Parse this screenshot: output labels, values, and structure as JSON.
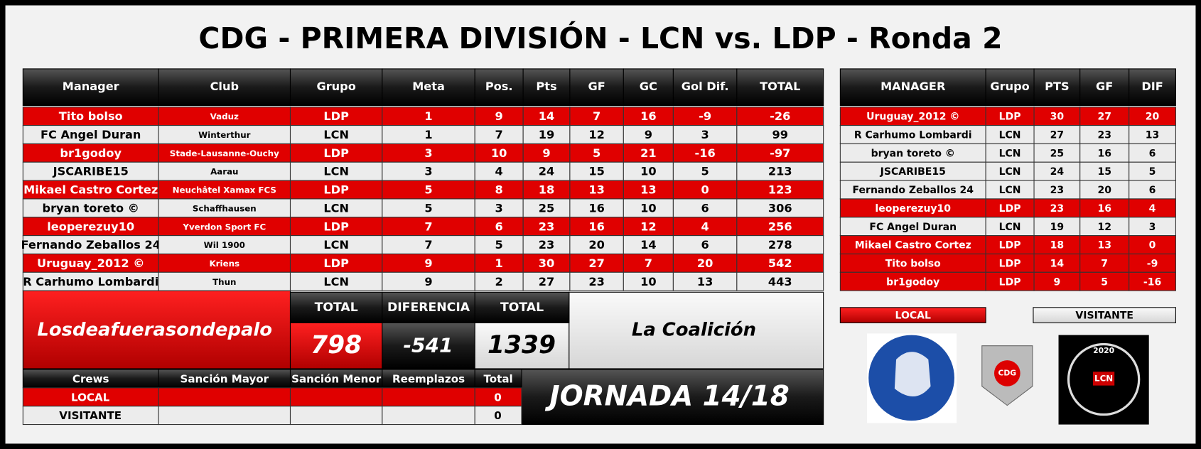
{
  "title": "CDG - PRIMERA DIVISIÓN - LCN vs. LDP - Ronda 2",
  "main_table": {
    "headers": [
      "Manager",
      "Club",
      "Grupo",
      "Meta",
      "Pos.",
      "Pts",
      "GF",
      "GC",
      "Gol Dif.",
      "TOTAL"
    ],
    "rows": [
      {
        "color": "#e00000",
        "text_color": "#ffffff",
        "cells": [
          "Tito bolso",
          "Vaduz",
          "LDP",
          1,
          9,
          14,
          7,
          16,
          -9,
          -26
        ]
      },
      {
        "color": "#ececec",
        "text_color": "#000000",
        "cells": [
          "FC Angel Duran",
          "Winterthur",
          "LCN",
          1,
          7,
          19,
          12,
          9,
          3,
          99
        ]
      },
      {
        "color": "#e00000",
        "text_color": "#ffffff",
        "cells": [
          "br1godoy",
          "Stade-Lausanne-Ouchy",
          "LDP",
          3,
          10,
          9,
          5,
          21,
          -16,
          -97
        ]
      },
      {
        "color": "#ececec",
        "text_color": "#000000",
        "cells": [
          "JSCARIBE15",
          "Aarau",
          "LCN",
          3,
          4,
          24,
          15,
          10,
          5,
          213
        ]
      },
      {
        "color": "#e00000",
        "text_color": "#ffffff",
        "cells": [
          "Mikael Castro Cortez",
          "Neuchâtel Xamax FCS",
          "LDP",
          5,
          8,
          18,
          13,
          13,
          0,
          123
        ]
      },
      {
        "color": "#ececec",
        "text_color": "#000000",
        "cells": [
          "bryan toreto ©",
          "Schaffhausen",
          "LCN",
          5,
          3,
          25,
          16,
          10,
          6,
          306
        ]
      },
      {
        "color": "#e00000",
        "text_color": "#ffffff",
        "cells": [
          "leoperezuy10",
          "Yverdon Sport FC",
          "LDP",
          7,
          6,
          23,
          16,
          12,
          4,
          256
        ]
      },
      {
        "color": "#ececec",
        "text_color": "#000000",
        "cells": [
          "Fernando Zeballos 24",
          "Wil 1900",
          "LCN",
          7,
          5,
          23,
          20,
          14,
          6,
          278
        ]
      },
      {
        "color": "#e00000",
        "text_color": "#ffffff",
        "cells": [
          "Uruguay_2012 ©",
          "Kriens",
          "LDP",
          9,
          1,
          30,
          27,
          7,
          20,
          542
        ]
      },
      {
        "color": "#ececec",
        "text_color": "#000000",
        "cells": [
          "R Carhumo Lombardi",
          "Thun",
          "LCN",
          9,
          2,
          27,
          23,
          10,
          13,
          443
        ]
      }
    ]
  },
  "summary": {
    "local_name": "Losdeafuerasondepalo",
    "headers": [
      "TOTAL",
      "DIFERENCIA",
      "TOTAL"
    ],
    "values": [
      798,
      -541,
      1339
    ],
    "visitor_name": "La Coalición"
  },
  "crews": {
    "headers": [
      "Crews",
      "Sanción Mayor",
      "Sanción Menor",
      "Reemplazos",
      "Total"
    ],
    "rows": [
      {
        "label": "LOCAL",
        "total": 0,
        "color": "#e00000",
        "text_color": "#ffffff"
      },
      {
        "label": "VISITANTE",
        "total": 0,
        "color": "#ececec",
        "text_color": "#000000"
      }
    ]
  },
  "jornada": "JORNADA 14/18",
  "standings": {
    "headers": [
      "MANAGER",
      "Grupo",
      "PTS",
      "GF",
      "DIF"
    ],
    "rows": [
      {
        "color": "#e00000",
        "text_color": "#ffffff",
        "cells": [
          "Uruguay_2012 ©",
          "LDP",
          30,
          27,
          20
        ]
      },
      {
        "color": "#ececec",
        "text_color": "#000000",
        "cells": [
          "R Carhumo Lombardi",
          "LCN",
          27,
          23,
          13
        ]
      },
      {
        "color": "#ececec",
        "text_color": "#000000",
        "cells": [
          "bryan toreto ©",
          "LCN",
          25,
          16,
          6
        ]
      },
      {
        "color": "#ececec",
        "text_color": "#000000",
        "cells": [
          "JSCARIBE15",
          "LCN",
          24,
          15,
          5
        ]
      },
      {
        "color": "#ececec",
        "text_color": "#000000",
        "cells": [
          "Fernando Zeballos 24",
          "LCN",
          23,
          20,
          6
        ]
      },
      {
        "color": "#e00000",
        "text_color": "#ffffff",
        "cells": [
          "leoperezuy10",
          "LDP",
          23,
          16,
          4
        ]
      },
      {
        "color": "#ececec",
        "text_color": "#000000",
        "cells": [
          "FC Angel Duran",
          "LCN",
          19,
          12,
          3
        ]
      },
      {
        "color": "#e00000",
        "text_color": "#ffffff",
        "cells": [
          "Mikael Castro Cortez",
          "LDP",
          18,
          13,
          0
        ]
      },
      {
        "color": "#e00000",
        "text_color": "#ffffff",
        "cells": [
          "Tito bolso",
          "LDP",
          14,
          7,
          -9
        ]
      },
      {
        "color": "#e00000",
        "text_color": "#ffffff",
        "cells": [
          "br1godoy",
          "LDP",
          9,
          5,
          -16
        ]
      }
    ]
  },
  "legend": {
    "local": "LOCAL",
    "visitor": "VISITANTE"
  },
  "logos": {
    "center": "CDG",
    "right": "LCN",
    "right_year": "2020"
  }
}
